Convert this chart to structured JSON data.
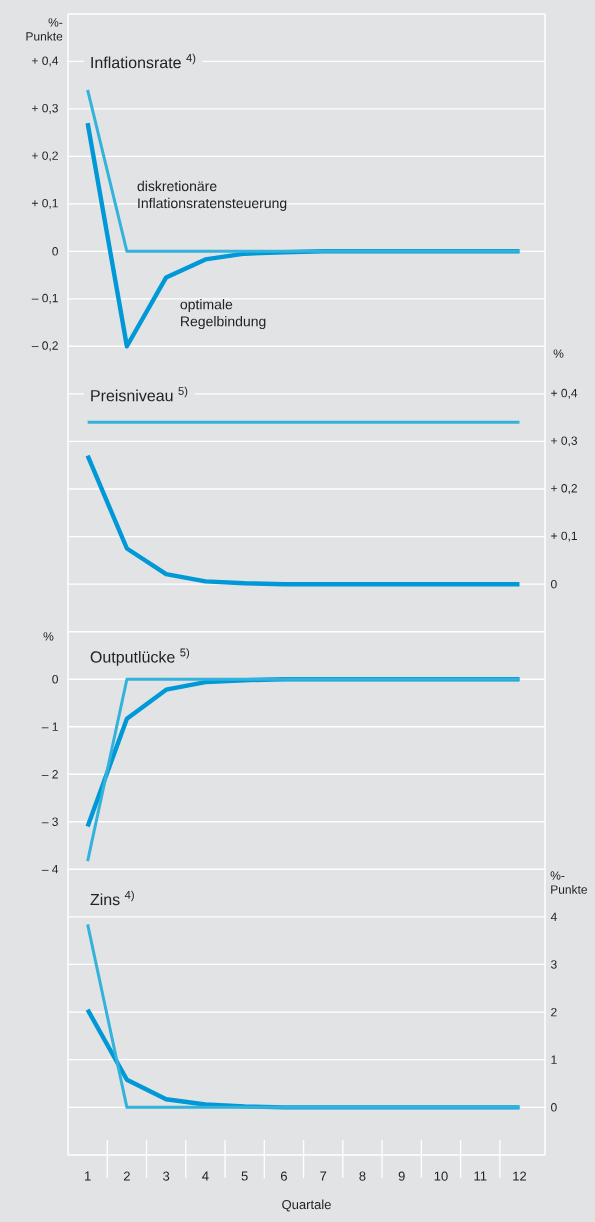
{
  "chart_data": [
    {
      "type": "line",
      "title": "Inflationsrate $^{4)}$",
      "ylabel": "%-Punkte",
      "x": [
        1,
        2,
        3,
        4,
        5,
        6,
        7,
        8,
        9,
        10,
        11,
        12
      ],
      "xlim": [
        0.5,
        12.65
      ],
      "ylim": [
        -0.25,
        0.5
      ],
      "yticks": [
        {
          "value": -0.2,
          "label": "– 0,2"
        },
        {
          "value": -0.1,
          "label": "– 0,1"
        },
        0,
        {
          "value": 0.1,
          "label": "+ 0,1"
        },
        {
          "value": 0.2,
          "label": "+ 0,2"
        },
        {
          "value": 0.3,
          "label": "+ 0,3"
        },
        {
          "value": 0.4,
          "label": "+ 0,4"
        }
      ],
      "grid": "y",
      "tick_labels": "y",
      "series": [
        {
          "name": "optimale Regelbindung",
          "color": "#0098d6",
          "values": [
            0.27,
            -0.2,
            -0.055,
            -0.017,
            -0.005,
            -0.002,
            0,
            0,
            0,
            0,
            0,
            0
          ]
        },
        {
          "name": "diskretionäre Inflationsratensteuerung",
          "color": "#33b3dc",
          "values": [
            0.34,
            0,
            0,
            0,
            0,
            0,
            0,
            0,
            0,
            0,
            0,
            0
          ]
        }
      ]
    },
    {
      "type": "line",
      "title": "Preisniveau $^{5)}$",
      "y2label": "%",
      "x": [
        1,
        2,
        3,
        4,
        5,
        6,
        7,
        8,
        9,
        10,
        11,
        12
      ],
      "xlim": [
        0.5,
        12.65
      ],
      "y2lim": [
        -0.05,
        0.45
      ],
      "y2ticks": [
        0,
        {
          "value": 0.1,
          "label": "+ 0,1"
        },
        {
          "value": 0.2,
          "label": "+ 0,2"
        },
        {
          "value": 0.3,
          "label": "+ 0,3"
        },
        {
          "value": 0.4,
          "label": "+ 0,4"
        }
      ],
      "grid": "y",
      "tick_labels": "y",
      "series": [
        {
          "color": "#0098d6",
          "axis": "y2",
          "values": [
            0.27,
            0.075,
            0.021,
            0.006,
            0.002,
            0,
            0,
            0,
            0,
            0,
            0,
            0
          ]
        },
        {
          "color": "#33b3dc",
          "axis": "y2",
          "values": [
            0.34,
            0.34,
            0.34,
            0.34,
            0.34,
            0.34,
            0.34,
            0.34,
            0.34,
            0.34,
            0.34,
            0.34
          ]
        }
      ]
    },
    {
      "type": "line",
      "title": "Outputlücke $^{5)}$",
      "ylabel": "%",
      "x": [
        1,
        2,
        3,
        4,
        5,
        6,
        7,
        8,
        9,
        10,
        11,
        12
      ],
      "xlim": [
        0.5,
        12.65
      ],
      "ylim": [
        -4.5,
        1.5
      ],
      "yticks": [
        {
          "value": -4,
          "label": "– 4"
        },
        {
          "value": -3,
          "label": "– 3"
        },
        {
          "value": -2,
          "label": "– 2"
        },
        {
          "value": -1,
          "label": "– 1"
        },
        0,
        {
          "value": 1,
          "label": null
        }
      ],
      "grid": "y",
      "tick_labels": "y",
      "series": [
        {
          "color": "#0098d6",
          "values": [
            -3.1,
            -0.83,
            -0.22,
            -0.06,
            -0.02,
            0,
            0,
            0,
            0,
            0,
            0,
            0
          ]
        },
        {
          "color": "#33b3dc",
          "values": [
            -3.83,
            0,
            0,
            0,
            0,
            0,
            0,
            0,
            0,
            0,
            0,
            0
          ]
        }
      ]
    },
    {
      "type": "line",
      "title": "Zins $^{4)}$",
      "xlabel": "Quartale",
      "y2label": "%-Punkte",
      "x": [
        1,
        2,
        3,
        4,
        5,
        6,
        7,
        8,
        9,
        10,
        11,
        12
      ],
      "xlim": [
        0.5,
        12.65
      ],
      "y2lim": [
        -1,
        4.5
      ],
      "xticks": [
        1,
        2,
        3,
        4,
        5,
        6,
        7,
        8,
        9,
        10,
        11,
        12
      ],
      "y2ticks": [
        0,
        1,
        2,
        3,
        4
      ],
      "grid": "y",
      "series": [
        {
          "color": "#0098d6",
          "axis": "y2",
          "values": [
            2.05,
            0.58,
            0.17,
            0.06,
            0.02,
            0,
            0,
            0,
            0,
            0,
            0,
            0
          ]
        },
        {
          "color": "#33b3dc",
          "axis": "y2",
          "values": [
            3.84,
            0,
            0,
            0,
            0,
            0,
            0,
            0,
            0,
            0,
            0,
            0
          ]
        }
      ]
    }
  ]
}
